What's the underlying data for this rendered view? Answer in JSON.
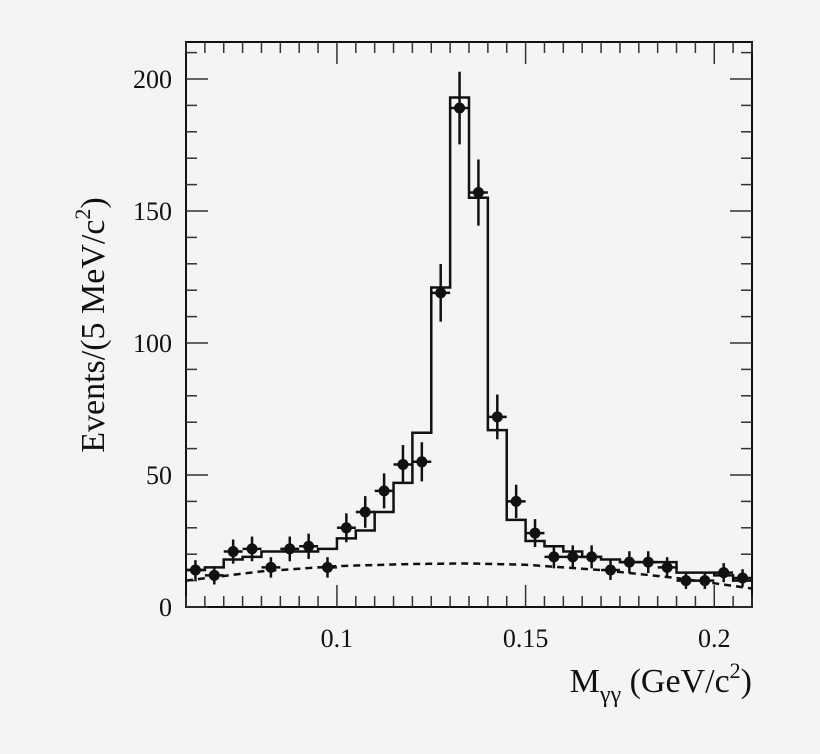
{
  "chart_data": {
    "type": "bar",
    "xlabel": "M",
    "xlabel_sub": "γγ",
    "xlabel_unit": " (GeV/c",
    "xlabel_unit_sup": "2",
    "xlabel_unit_end": ")",
    "ylabel": "Events/(5 MeV/c",
    "ylabel_sup": "2",
    "ylabel_end": ")",
    "xlim": [
      0.06,
      0.21
    ],
    "ylim": [
      0,
      200
    ],
    "xticks": [
      0.1,
      0.15,
      0.2
    ],
    "xtick_labels": [
      "0.1",
      "0.15",
      "0.2"
    ],
    "yticks": [
      0,
      50,
      100,
      150,
      200
    ],
    "ytick_labels": [
      "0",
      "50",
      "100",
      "150",
      "200"
    ],
    "grid": false,
    "bin_width": 0.005,
    "data_points": {
      "x": [
        0.0625,
        0.0675,
        0.0725,
        0.0775,
        0.0825,
        0.0875,
        0.0925,
        0.0975,
        0.1025,
        0.1075,
        0.1125,
        0.1175,
        0.1225,
        0.1275,
        0.1325,
        0.1375,
        0.1425,
        0.1475,
        0.1525,
        0.1575,
        0.1625,
        0.1675,
        0.1725,
        0.1775,
        0.1825,
        0.1875,
        0.1925,
        0.1975,
        0.2025,
        0.2075
      ],
      "y": [
        14,
        12,
        21,
        22,
        15,
        22,
        23,
        15,
        30,
        36,
        44,
        54,
        55,
        119,
        189,
        157,
        72,
        40,
        28,
        19,
        19,
        19,
        14,
        17,
        17,
        15,
        10,
        10,
        13,
        11
      ]
    },
    "fit_histogram": [
      14,
      15,
      18,
      19,
      21,
      21,
      21,
      22,
      26,
      29,
      36,
      47,
      66,
      121,
      193,
      155,
      67,
      33,
      25,
      23,
      21,
      19,
      18,
      17,
      17,
      17,
      13,
      13,
      12,
      10
    ],
    "background_curve": {
      "x": [
        0.06,
        0.08,
        0.1,
        0.12,
        0.135,
        0.15,
        0.17,
        0.19,
        0.21
      ],
      "y": [
        10,
        13.5,
        15.5,
        16.3,
        16.5,
        16,
        14,
        11,
        7
      ]
    }
  }
}
